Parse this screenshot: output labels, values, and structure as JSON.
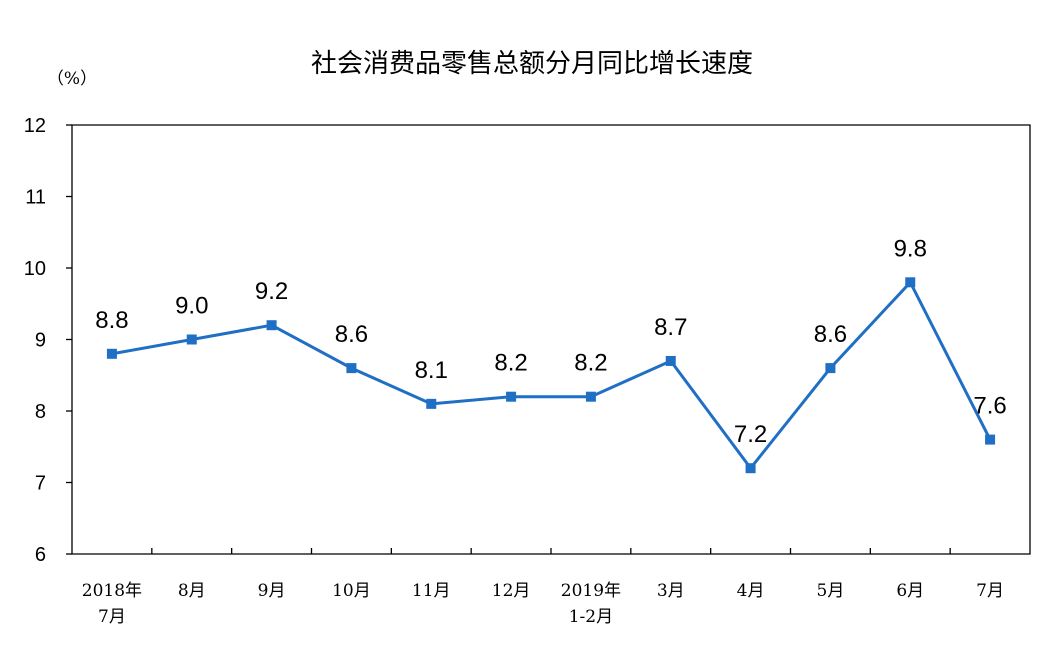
{
  "chart_data": {
    "type": "line",
    "title": "社会消费品零售总额分月同比增长速度",
    "unit_label": "（%）",
    "categories": [
      [
        "2018年",
        "7月"
      ],
      [
        "8月"
      ],
      [
        "9月"
      ],
      [
        "10月"
      ],
      [
        "11月"
      ],
      [
        "12月"
      ],
      [
        "2019年",
        "1-2月"
      ],
      [
        "3月"
      ],
      [
        "4月"
      ],
      [
        "5月"
      ],
      [
        "6月"
      ],
      [
        "7月"
      ]
    ],
    "values": [
      8.8,
      9.0,
      9.2,
      8.6,
      8.1,
      8.2,
      8.2,
      8.7,
      7.2,
      8.6,
      9.8,
      7.6
    ],
    "value_labels": [
      "8.8",
      "9.0",
      "9.2",
      "8.6",
      "8.1",
      "8.2",
      "8.2",
      "8.7",
      "7.2",
      "8.6",
      "9.8",
      "7.6"
    ],
    "ylim": [
      6,
      12
    ],
    "yticks": [
      "6",
      "7",
      "8",
      "9",
      "10",
      "11",
      "12"
    ],
    "grid": false,
    "legend": false,
    "colors": {
      "series": "#1F6FC5",
      "axis": "#000000"
    }
  }
}
